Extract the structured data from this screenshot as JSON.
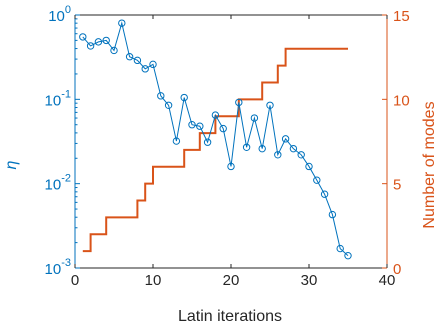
{
  "chart_data": {
    "type": "line",
    "xlabel": "Latin iterations",
    "xlim": [
      0,
      40
    ],
    "x_ticks": [
      "0",
      "10",
      "20",
      "30",
      "40"
    ],
    "grid": false,
    "legend": "none",
    "left_axis": {
      "label": "η",
      "scale": "log",
      "lim": [
        0.001,
        1
      ],
      "ticks": [
        {
          "base": "10",
          "exp": "-3",
          "value": 0.001
        },
        {
          "base": "10",
          "exp": "-2",
          "value": 0.01
        },
        {
          "base": "10",
          "exp": "-1",
          "value": 0.1
        },
        {
          "base": "10",
          "exp": "0",
          "value": 1
        }
      ],
      "color": "#0072BD"
    },
    "right_axis": {
      "label": "Number of modes",
      "scale": "linear",
      "lim": [
        0,
        15
      ],
      "ticks": [
        "0",
        "5",
        "10",
        "15"
      ],
      "color": "#D95319"
    },
    "series": [
      {
        "axis": "left",
        "marker": "circle",
        "color": "#0072BD",
        "x": [
          1,
          2,
          3,
          4,
          5,
          6,
          7,
          8,
          9,
          10,
          11,
          12,
          13,
          14,
          15,
          16,
          17,
          18,
          19,
          20,
          21,
          22,
          23,
          24,
          25,
          26,
          27,
          28,
          29,
          30,
          31,
          32,
          33,
          34,
          35
        ],
        "y": [
          0.55,
          0.43,
          0.48,
          0.5,
          0.38,
          0.8,
          0.32,
          0.29,
          0.23,
          0.26,
          0.11,
          0.085,
          0.032,
          0.105,
          0.05,
          0.048,
          0.031,
          0.065,
          0.045,
          0.016,
          0.092,
          0.027,
          0.06,
          0.026,
          0.085,
          0.022,
          0.034,
          0.026,
          0.022,
          0.016,
          0.011,
          0.0075,
          0.0043,
          0.0017,
          0.0014
        ]
      },
      {
        "axis": "right",
        "marker": "none",
        "color": "#D95319",
        "step": "post",
        "x": [
          1,
          2,
          3,
          4,
          5,
          6,
          7,
          8,
          9,
          10,
          11,
          12,
          13,
          14,
          15,
          16,
          17,
          18,
          19,
          20,
          21,
          22,
          23,
          24,
          25,
          26,
          27,
          28,
          29,
          30,
          31,
          32,
          33,
          34,
          35
        ],
        "y": [
          1,
          2,
          2,
          3,
          3,
          3,
          3,
          4,
          5,
          6,
          6,
          6,
          6,
          7,
          7,
          8,
          8,
          9,
          9,
          9,
          10,
          10,
          10,
          11,
          11,
          12,
          13,
          13,
          13,
          13,
          13,
          13,
          13,
          13,
          13
        ]
      }
    ]
  }
}
